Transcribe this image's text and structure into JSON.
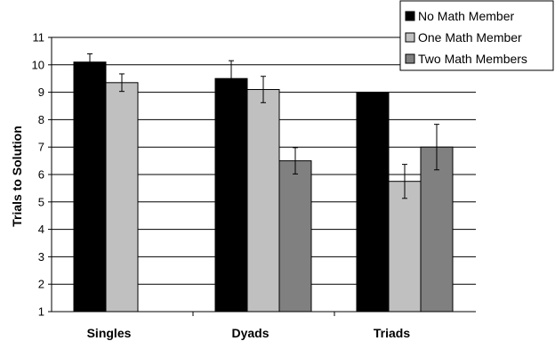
{
  "chart_data": {
    "type": "bar",
    "categories": [
      "Singles",
      "Dyads",
      "Triads"
    ],
    "series": [
      {
        "name": "No Math Member",
        "values": [
          10.1,
          9.5,
          9.0
        ],
        "errors": [
          0.3,
          0.65,
          0
        ],
        "color": "#000000"
      },
      {
        "name": "One Math Member",
        "values": [
          9.35,
          9.1,
          5.75
        ],
        "errors": [
          0.32,
          0.48,
          0.62
        ],
        "color": "#c0c0c0"
      },
      {
        "name": "Two Math Members",
        "values": [
          null,
          6.5,
          7.0
        ],
        "errors": [
          0,
          0.48,
          0.83
        ],
        "color": "#808080"
      }
    ],
    "ylabel": "Trials to Solution",
    "xlabel": "",
    "ylim": [
      1,
      11
    ],
    "yticks": [
      1,
      2,
      3,
      4,
      5,
      6,
      7,
      8,
      9,
      10,
      11
    ],
    "grid": true,
    "legend": "top-right"
  }
}
